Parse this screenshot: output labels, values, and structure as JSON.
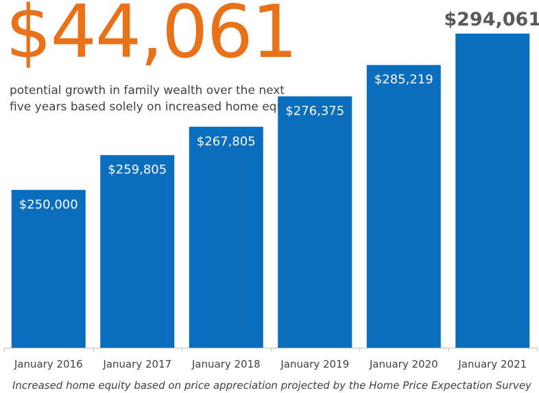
{
  "headline": "$44,061",
  "subtitle": "potential growth in family wealth over the next five years based solely on increased home equity",
  "footnote": "Increased home equity based on price appreciation projected by the Home Price Expectation Survey",
  "colors": {
    "bar": "#0a6ebd",
    "headline": "#e8711a",
    "text": "#404040",
    "bar_label": "#ffffff",
    "highlight_label": "#595959"
  },
  "chart_data": {
    "type": "bar",
    "categories": [
      "January 2016",
      "January 2017",
      "January 2018",
      "January 2019",
      "January 2020",
      "January 2021"
    ],
    "values": [
      250000,
      259805,
      267805,
      276375,
      285219,
      294061
    ],
    "data_labels": [
      "$250,000",
      "$259,805",
      "$267,805",
      "$276,375",
      "$285,219",
      "$294,061"
    ],
    "highlight_last_label": true,
    "ylim": [
      205500,
      294061
    ],
    "title": "",
    "xlabel": "",
    "ylabel": "",
    "grid": false,
    "legend": "none"
  }
}
